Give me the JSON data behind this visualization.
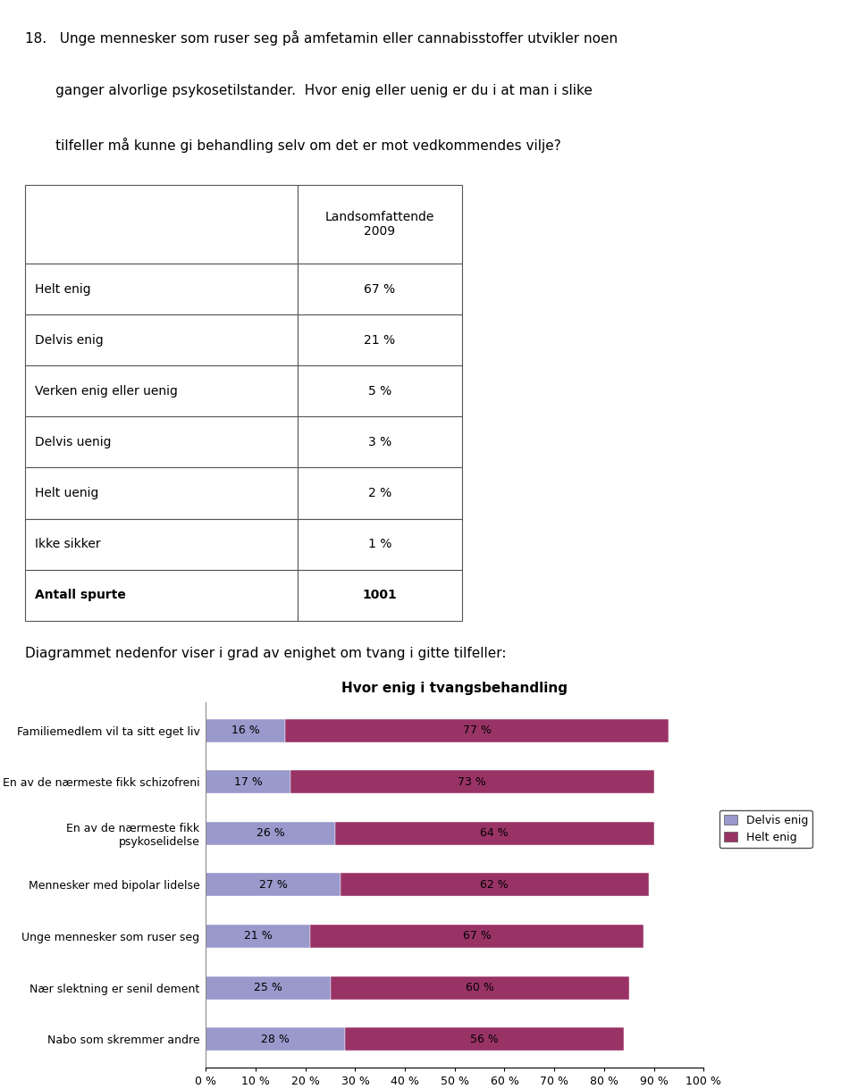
{
  "question_line1": "18.   Unge mennesker som ruser seg på amfetamin eller cannabisstoffer utvikler noen",
  "question_line2": "       ganger alvorlige psykosetilstander.  Hvor enig eller uenig er du i at man i slike",
  "question_line3": "       tilfeller må kunne gi behandling selv om det er mot vedkommendes vilje?",
  "table_header_col2": "Landsomfattende\n2009",
  "table_rows": [
    [
      "Helt enig",
      "67 %"
    ],
    [
      "Delvis enig",
      "21 %"
    ],
    [
      "Verken enig eller uenig",
      "5 %"
    ],
    [
      "Delvis uenig",
      "3 %"
    ],
    [
      "Helt uenig",
      "2 %"
    ],
    [
      "Ikke sikker",
      "1 %"
    ],
    [
      "Antall spurte",
      "1001"
    ]
  ],
  "diagram_intro": "Diagrammet nedenfor viser i grad av enighet om tvang i gitte tilfeller:",
  "chart_title": "Hvor enig i tvangsbehandling",
  "categories": [
    "Familiemedlem vil ta sitt eget liv",
    "En av de nærmeste fikk schizofreni",
    "En av de nærmeste fikk\npsykoselidelse",
    "Mennesker med bipolar lidelse",
    "Unge mennesker som ruser seg",
    "Nær slektning er senil dement",
    "Nabo som skremmer andre"
  ],
  "delvis_enig": [
    16,
    17,
    26,
    27,
    21,
    25,
    28
  ],
  "helt_enig": [
    77,
    73,
    64,
    62,
    67,
    60,
    56
  ],
  "color_delvis": "#9999CC",
  "color_helt": "#993366",
  "legend_delvis": "Delvis enig",
  "legend_helt": "Helt enig",
  "xticks": [
    0,
    10,
    20,
    30,
    40,
    50,
    60,
    70,
    80,
    90,
    100
  ],
  "xtick_labels": [
    "0 %",
    "10 %",
    "20 %",
    "30 %",
    "40 %",
    "50 %",
    "60 %",
    "70 %",
    "80 %",
    "90 %",
    "100 %"
  ],
  "bg_color": "#ffffff",
  "text_fontsize": 11,
  "table_fontsize": 10,
  "chart_fontsize": 9,
  "title_fontsize": 11
}
